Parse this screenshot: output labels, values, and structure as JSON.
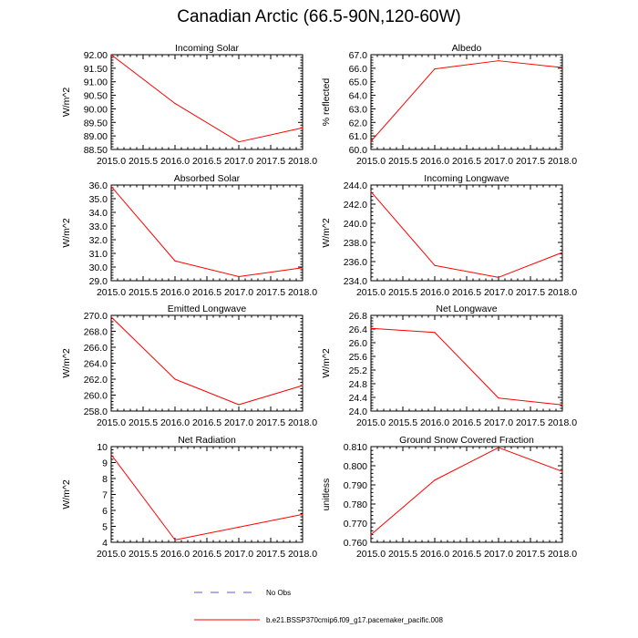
{
  "title": "Canadian Arctic (66.5-90N,120-60W)",
  "colors": {
    "model_line": "#ff0000",
    "obs_line": "#5b5bd6",
    "axis": "#000000",
    "background": "#ffffff"
  },
  "legend": [
    {
      "label": "No Obs",
      "style": "dashed",
      "color": "#5b5bd6"
    },
    {
      "label": "b.e21.BSSP370cmip6.f09_g17.pacemaker_pacific.008",
      "style": "solid",
      "color": "#ff0000"
    }
  ],
  "chart_data": [
    {
      "type": "line",
      "title": "Incoming Solar",
      "ylabel": "W/m^2",
      "x": [
        2015,
        2016,
        2017,
        2018
      ],
      "values": [
        92.0,
        90.2,
        88.78,
        89.3
      ],
      "xlim": [
        2015,
        2018
      ],
      "ylim": [
        88.5,
        92.0
      ],
      "xticks": [
        2015.0,
        2015.5,
        2016.0,
        2016.5,
        2017.0,
        2017.5,
        2018.0
      ],
      "xtick_labels": [
        "2015.0",
        "2015.5",
        "2016.0",
        "2016.5",
        "2017.0",
        "2017.5",
        "2018.0"
      ],
      "yticks": [
        88.5,
        89.0,
        89.5,
        90.0,
        90.5,
        91.0,
        91.5,
        92.0
      ],
      "ytick_labels": [
        "88.50",
        "89.00",
        "89.50",
        "90.00",
        "90.50",
        "91.00",
        "91.50",
        "92.00"
      ]
    },
    {
      "type": "line",
      "title": "Albedo",
      "ylabel": "% reflected",
      "x": [
        2015,
        2016,
        2017,
        2018
      ],
      "values": [
        60.6,
        65.95,
        66.55,
        66.05
      ],
      "xlim": [
        2015,
        2018
      ],
      "ylim": [
        60.0,
        67.0
      ],
      "xticks": [
        2015.0,
        2015.5,
        2016.0,
        2016.5,
        2017.0,
        2017.5,
        2018.0
      ],
      "xtick_labels": [
        "2015.0",
        "2015.5",
        "2016.0",
        "2016.5",
        "2017.0",
        "2017.5",
        "2018.0"
      ],
      "yticks": [
        60,
        61,
        62,
        63,
        64,
        65,
        66,
        67
      ],
      "ytick_labels": [
        "60.0",
        "61.0",
        "62.0",
        "63.0",
        "64.0",
        "65.0",
        "66.0",
        "67.0"
      ]
    },
    {
      "type": "line",
      "title": "Absorbed Solar",
      "ylabel": "W/m^2",
      "x": [
        2015,
        2016,
        2017,
        2018
      ],
      "values": [
        35.9,
        30.45,
        29.3,
        29.95
      ],
      "xlim": [
        2015,
        2018
      ],
      "ylim": [
        29.0,
        36.0
      ],
      "xticks": [
        2015.0,
        2015.5,
        2016.0,
        2016.5,
        2017.0,
        2017.5,
        2018.0
      ],
      "xtick_labels": [
        "2015.0",
        "2015.5",
        "2016.0",
        "2016.5",
        "2017.0",
        "2017.5",
        "2018.0"
      ],
      "yticks": [
        29,
        30,
        31,
        32,
        33,
        34,
        35,
        36
      ],
      "ytick_labels": [
        "29.0",
        "30.0",
        "31.0",
        "32.0",
        "33.0",
        "34.0",
        "35.0",
        "36.0"
      ]
    },
    {
      "type": "line",
      "title": "Incoming Longwave",
      "ylabel": "W/m^2",
      "x": [
        2015,
        2016,
        2017,
        2018
      ],
      "values": [
        243.3,
        235.6,
        234.35,
        236.95
      ],
      "xlim": [
        2015,
        2018
      ],
      "ylim": [
        234.0,
        244.0
      ],
      "xticks": [
        2015.0,
        2015.5,
        2016.0,
        2016.5,
        2017.0,
        2017.5,
        2018.0
      ],
      "xtick_labels": [
        "2015.0",
        "2015.5",
        "2016.0",
        "2016.5",
        "2017.0",
        "2017.5",
        "2018.0"
      ],
      "yticks": [
        234,
        236,
        238,
        240,
        242,
        244
      ],
      "ytick_labels": [
        "234.0",
        "236.0",
        "238.0",
        "240.0",
        "242.0",
        "244.0"
      ]
    },
    {
      "type": "line",
      "title": "Emitted Longwave",
      "ylabel": "W/m^2",
      "x": [
        2015,
        2016,
        2017,
        2018
      ],
      "values": [
        269.8,
        262.0,
        258.8,
        261.2
      ],
      "xlim": [
        2015,
        2018
      ],
      "ylim": [
        258.0,
        270.0
      ],
      "xticks": [
        2015.0,
        2015.5,
        2016.0,
        2016.5,
        2017.0,
        2017.5,
        2018.0
      ],
      "xtick_labels": [
        "2015.0",
        "2015.5",
        "2016.0",
        "2016.5",
        "2017.0",
        "2017.5",
        "2018.0"
      ],
      "yticks": [
        258,
        260,
        262,
        264,
        266,
        268,
        270
      ],
      "ytick_labels": [
        "258.0",
        "260.0",
        "262.0",
        "264.0",
        "266.0",
        "268.0",
        "270.0"
      ]
    },
    {
      "type": "line",
      "title": "Net Longwave",
      "ylabel": "W/m^2",
      "x": [
        2015,
        2016,
        2017,
        2018
      ],
      "values": [
        26.42,
        26.3,
        24.38,
        24.18
      ],
      "xlim": [
        2015,
        2018
      ],
      "ylim": [
        24.0,
        26.8
      ],
      "xticks": [
        2015.0,
        2015.5,
        2016.0,
        2016.5,
        2017.0,
        2017.5,
        2018.0
      ],
      "xtick_labels": [
        "2015.0",
        "2015.5",
        "2016.0",
        "2016.5",
        "2017.0",
        "2017.5",
        "2018.0"
      ],
      "yticks": [
        24.0,
        24.4,
        24.8,
        25.2,
        25.6,
        26.0,
        26.4,
        26.8
      ],
      "ytick_labels": [
        "24.0",
        "24.4",
        "24.8",
        "25.2",
        "25.6",
        "26.0",
        "26.4",
        "26.8"
      ]
    },
    {
      "type": "line",
      "title": "Net Radiation",
      "ylabel": "W/m^2",
      "x": [
        2015,
        2016,
        2017,
        2018
      ],
      "values": [
        9.5,
        4.15,
        4.95,
        5.75
      ],
      "xlim": [
        2015,
        2018
      ],
      "ylim": [
        4,
        10
      ],
      "xticks": [
        2015.0,
        2015.5,
        2016.0,
        2016.5,
        2017.0,
        2017.5,
        2018.0
      ],
      "xtick_labels": [
        "2015.0",
        "2015.5",
        "2016.0",
        "2016.5",
        "2017.0",
        "2017.5",
        "2018.0"
      ],
      "yticks": [
        4,
        5,
        6,
        7,
        8,
        9,
        10
      ],
      "ytick_labels": [
        "4",
        "5",
        "6",
        "7",
        "8",
        "9",
        "10"
      ]
    },
    {
      "type": "line",
      "title": "Ground Snow Covered Fraction",
      "ylabel": "unitless",
      "x": [
        2015,
        2016,
        2017,
        2018
      ],
      "values": [
        0.764,
        0.7925,
        0.8095,
        0.797
      ],
      "xlim": [
        2015,
        2018
      ],
      "ylim": [
        0.76,
        0.81
      ],
      "xticks": [
        2015.0,
        2015.5,
        2016.0,
        2016.5,
        2017.0,
        2017.5,
        2018.0
      ],
      "xtick_labels": [
        "2015.0",
        "2015.5",
        "2016.0",
        "2016.5",
        "2017.0",
        "2017.5",
        "2018.0"
      ],
      "yticks": [
        0.76,
        0.77,
        0.78,
        0.79,
        0.8,
        0.81
      ],
      "ytick_labels": [
        "0.760",
        "0.770",
        "0.780",
        "0.790",
        "0.800",
        "0.810"
      ]
    }
  ]
}
